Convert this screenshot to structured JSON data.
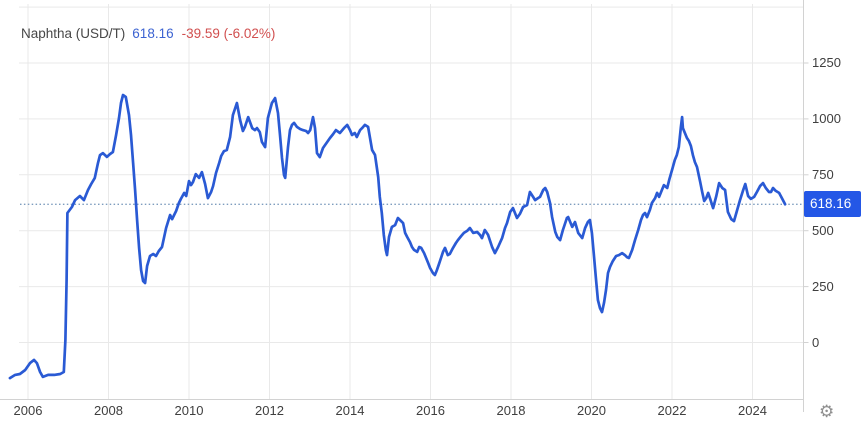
{
  "header": {
    "title": "Naphtha (USD/T)",
    "price": "618.16",
    "change": "-39.59 (-6.02%)"
  },
  "y_axis": {
    "ticks": [
      1250,
      1000,
      750,
      500,
      250,
      0
    ],
    "grid_levels": [
      1500,
      1250,
      1000,
      750,
      500,
      250,
      0
    ],
    "current_price_label": "618.16"
  },
  "x_axis": {
    "ticks": [
      "2006",
      "2008",
      "2010",
      "2012",
      "2014",
      "2016",
      "2018",
      "2020",
      "2022",
      "2024"
    ]
  },
  "icons": {
    "settings_glyph": "⚙"
  },
  "colors": {
    "line": "#2a5ad4",
    "badge": "#2457e6",
    "price_text": "#3c63d2",
    "change_text": "#d14f4f",
    "grid": "#e9e9e9",
    "axis": "#d2d2d2",
    "dotted": "#7d9cbe"
  },
  "chart_data": {
    "type": "line",
    "title": "Naphtha (USD/T)",
    "legend": "none",
    "grid": true,
    "current_value": 618.16,
    "change": -39.59,
    "change_pct": "-6.02%",
    "reference_line": 618.16,
    "xlabel": "",
    "ylabel": "USD/T",
    "x_range_years": [
      2005.55,
      2025.25
    ],
    "y_axis_labeled_range": [
      0,
      1250
    ],
    "series": [
      {
        "name": "Naphtha USD/T",
        "points": [
          [
            2005.55,
            -159
          ],
          [
            2005.68,
            -145
          ],
          [
            2005.8,
            -141
          ],
          [
            2005.93,
            -123
          ],
          [
            2006.05,
            -92
          ],
          [
            2006.15,
            -78
          ],
          [
            2006.22,
            -92
          ],
          [
            2006.3,
            -132
          ],
          [
            2006.37,
            -154
          ],
          [
            2006.5,
            -145
          ],
          [
            2006.65,
            -145
          ],
          [
            2006.8,
            -141
          ],
          [
            2006.89,
            -132
          ],
          [
            2006.93,
            11
          ],
          [
            2006.96,
            280
          ],
          [
            2006.98,
            579
          ],
          [
            2007.09,
            606
          ],
          [
            2007.17,
            637
          ],
          [
            2007.29,
            655
          ],
          [
            2007.39,
            637
          ],
          [
            2007.49,
            682
          ],
          [
            2007.57,
            709
          ],
          [
            2007.66,
            736
          ],
          [
            2007.74,
            803
          ],
          [
            2007.79,
            838
          ],
          [
            2007.86,
            847
          ],
          [
            2007.96,
            830
          ],
          [
            2008.04,
            843
          ],
          [
            2008.11,
            852
          ],
          [
            2008.19,
            928
          ],
          [
            2008.26,
            1004
          ],
          [
            2008.31,
            1071
          ],
          [
            2008.36,
            1107
          ],
          [
            2008.43,
            1098
          ],
          [
            2008.51,
            1017
          ],
          [
            2008.56,
            928
          ],
          [
            2008.61,
            803
          ],
          [
            2008.66,
            682
          ],
          [
            2008.71,
            548
          ],
          [
            2008.76,
            423
          ],
          [
            2008.81,
            324
          ],
          [
            2008.86,
            275
          ],
          [
            2008.91,
            266
          ],
          [
            2008.96,
            342
          ],
          [
            2009.03,
            387
          ],
          [
            2009.11,
            396
          ],
          [
            2009.18,
            387
          ],
          [
            2009.25,
            409
          ],
          [
            2009.33,
            427
          ],
          [
            2009.43,
            512
          ],
          [
            2009.53,
            570
          ],
          [
            2009.58,
            552
          ],
          [
            2009.68,
            588
          ],
          [
            2009.75,
            624
          ],
          [
            2009.8,
            642
          ],
          [
            2009.88,
            669
          ],
          [
            2009.93,
            655
          ],
          [
            2010.0,
            722
          ],
          [
            2010.05,
            704
          ],
          [
            2010.1,
            718
          ],
          [
            2010.17,
            753
          ],
          [
            2010.25,
            736
          ],
          [
            2010.32,
            762
          ],
          [
            2010.4,
            709
          ],
          [
            2010.47,
            646
          ],
          [
            2010.55,
            673
          ],
          [
            2010.6,
            700
          ],
          [
            2010.67,
            758
          ],
          [
            2010.75,
            803
          ],
          [
            2010.8,
            834
          ],
          [
            2010.87,
            856
          ],
          [
            2010.94,
            861
          ],
          [
            2011.02,
            919
          ],
          [
            2011.09,
            1017
          ],
          [
            2011.19,
            1071
          ],
          [
            2011.27,
            995
          ],
          [
            2011.34,
            946
          ],
          [
            2011.39,
            964
          ],
          [
            2011.47,
            1008
          ],
          [
            2011.57,
            959
          ],
          [
            2011.64,
            950
          ],
          [
            2011.69,
            959
          ],
          [
            2011.76,
            941
          ],
          [
            2011.81,
            897
          ],
          [
            2011.89,
            874
          ],
          [
            2011.96,
            1004
          ],
          [
            2012.06,
            1071
          ],
          [
            2012.14,
            1093
          ],
          [
            2012.21,
            1026
          ],
          [
            2012.26,
            928
          ],
          [
            2012.31,
            825
          ],
          [
            2012.36,
            749
          ],
          [
            2012.39,
            736
          ],
          [
            2012.46,
            874
          ],
          [
            2012.51,
            950
          ],
          [
            2012.56,
            973
          ],
          [
            2012.61,
            982
          ],
          [
            2012.68,
            964
          ],
          [
            2012.76,
            955
          ],
          [
            2012.83,
            950
          ],
          [
            2012.91,
            946
          ],
          [
            2012.96,
            937
          ],
          [
            2013.01,
            950
          ],
          [
            2013.08,
            1008
          ],
          [
            2013.13,
            959
          ],
          [
            2013.18,
            847
          ],
          [
            2013.25,
            829
          ],
          [
            2013.33,
            870
          ],
          [
            2013.38,
            883
          ],
          [
            2013.5,
            914
          ],
          [
            2013.58,
            932
          ],
          [
            2013.65,
            950
          ],
          [
            2013.75,
            937
          ],
          [
            2013.85,
            959
          ],
          [
            2013.93,
            973
          ],
          [
            2014.0,
            950
          ],
          [
            2014.05,
            928
          ],
          [
            2014.12,
            937
          ],
          [
            2014.17,
            919
          ],
          [
            2014.25,
            950
          ],
          [
            2014.3,
            959
          ],
          [
            2014.37,
            973
          ],
          [
            2014.45,
            964
          ],
          [
            2014.55,
            861
          ],
          [
            2014.62,
            839
          ],
          [
            2014.7,
            740
          ],
          [
            2014.74,
            651
          ],
          [
            2014.79,
            579
          ],
          [
            2014.84,
            481
          ],
          [
            2014.89,
            414
          ],
          [
            2014.92,
            391
          ],
          [
            2014.97,
            472
          ],
          [
            2015.04,
            517
          ],
          [
            2015.12,
            525
          ],
          [
            2015.19,
            557
          ],
          [
            2015.27,
            543
          ],
          [
            2015.32,
            534
          ],
          [
            2015.37,
            490
          ],
          [
            2015.42,
            472
          ],
          [
            2015.49,
            449
          ],
          [
            2015.54,
            427
          ],
          [
            2015.59,
            414
          ],
          [
            2015.67,
            405
          ],
          [
            2015.72,
            427
          ],
          [
            2015.77,
            423
          ],
          [
            2015.84,
            400
          ],
          [
            2015.89,
            378
          ],
          [
            2015.94,
            356
          ],
          [
            2015.99,
            333
          ],
          [
            2016.06,
            311
          ],
          [
            2016.11,
            302
          ],
          [
            2016.16,
            324
          ],
          [
            2016.21,
            351
          ],
          [
            2016.26,
            378
          ],
          [
            2016.31,
            405
          ],
          [
            2016.36,
            423
          ],
          [
            2016.43,
            391
          ],
          [
            2016.48,
            396
          ],
          [
            2016.56,
            423
          ],
          [
            2016.63,
            445
          ],
          [
            2016.68,
            458
          ],
          [
            2016.76,
            476
          ],
          [
            2016.83,
            490
          ],
          [
            2016.91,
            499
          ],
          [
            2016.98,
            512
          ],
          [
            2017.06,
            490
          ],
          [
            2017.16,
            494
          ],
          [
            2017.23,
            481
          ],
          [
            2017.28,
            467
          ],
          [
            2017.35,
            503
          ],
          [
            2017.43,
            481
          ],
          [
            2017.53,
            427
          ],
          [
            2017.6,
            400
          ],
          [
            2017.68,
            427
          ],
          [
            2017.78,
            467
          ],
          [
            2017.85,
            512
          ],
          [
            2017.9,
            534
          ],
          [
            2017.98,
            584
          ],
          [
            2018.05,
            601
          ],
          [
            2018.15,
            557
          ],
          [
            2018.22,
            575
          ],
          [
            2018.3,
            606
          ],
          [
            2018.4,
            615
          ],
          [
            2018.47,
            673
          ],
          [
            2018.55,
            651
          ],
          [
            2018.6,
            637
          ],
          [
            2018.67,
            646
          ],
          [
            2018.72,
            651
          ],
          [
            2018.8,
            682
          ],
          [
            2018.85,
            691
          ],
          [
            2018.9,
            673
          ],
          [
            2018.97,
            624
          ],
          [
            2019.02,
            561
          ],
          [
            2019.1,
            494
          ],
          [
            2019.15,
            472
          ],
          [
            2019.22,
            458
          ],
          [
            2019.29,
            503
          ],
          [
            2019.39,
            557
          ],
          [
            2019.42,
            561
          ],
          [
            2019.52,
            517
          ],
          [
            2019.59,
            539
          ],
          [
            2019.67,
            490
          ],
          [
            2019.77,
            467
          ],
          [
            2019.84,
            512
          ],
          [
            2019.91,
            539
          ],
          [
            2019.96,
            548
          ],
          [
            2020.01,
            490
          ],
          [
            2020.06,
            391
          ],
          [
            2020.11,
            288
          ],
          [
            2020.16,
            190
          ],
          [
            2020.21,
            154
          ],
          [
            2020.26,
            136
          ],
          [
            2020.31,
            177
          ],
          [
            2020.36,
            235
          ],
          [
            2020.41,
            311
          ],
          [
            2020.46,
            338
          ],
          [
            2020.53,
            364
          ],
          [
            2020.61,
            387
          ],
          [
            2020.68,
            391
          ],
          [
            2020.76,
            400
          ],
          [
            2020.83,
            391
          ],
          [
            2020.88,
            382
          ],
          [
            2020.93,
            378
          ],
          [
            2021.01,
            414
          ],
          [
            2021.08,
            458
          ],
          [
            2021.16,
            503
          ],
          [
            2021.23,
            548
          ],
          [
            2021.28,
            570
          ],
          [
            2021.33,
            579
          ],
          [
            2021.38,
            561
          ],
          [
            2021.45,
            593
          ],
          [
            2021.5,
            624
          ],
          [
            2021.58,
            646
          ],
          [
            2021.63,
            669
          ],
          [
            2021.68,
            651
          ],
          [
            2021.75,
            682
          ],
          [
            2021.8,
            704
          ],
          [
            2021.88,
            691
          ],
          [
            2021.93,
            727
          ],
          [
            2022.0,
            771
          ],
          [
            2022.07,
            816
          ],
          [
            2022.12,
            838
          ],
          [
            2022.17,
            874
          ],
          [
            2022.22,
            964
          ],
          [
            2022.25,
            1008
          ],
          [
            2022.27,
            959
          ],
          [
            2022.32,
            937
          ],
          [
            2022.37,
            915
          ],
          [
            2022.42,
            901
          ],
          [
            2022.47,
            879
          ],
          [
            2022.52,
            838
          ],
          [
            2022.57,
            807
          ],
          [
            2022.62,
            785
          ],
          [
            2022.7,
            718
          ],
          [
            2022.75,
            673
          ],
          [
            2022.8,
            633
          ],
          [
            2022.85,
            646
          ],
          [
            2022.9,
            669
          ],
          [
            2022.95,
            642
          ],
          [
            2023.02,
            601
          ],
          [
            2023.1,
            655
          ],
          [
            2023.17,
            713
          ],
          [
            2023.25,
            691
          ],
          [
            2023.32,
            682
          ],
          [
            2023.39,
            584
          ],
          [
            2023.47,
            552
          ],
          [
            2023.54,
            543
          ],
          [
            2023.62,
            593
          ],
          [
            2023.69,
            637
          ],
          [
            2023.77,
            682
          ],
          [
            2023.82,
            709
          ],
          [
            2023.89,
            655
          ],
          [
            2023.96,
            642
          ],
          [
            2024.04,
            651
          ],
          [
            2024.11,
            673
          ],
          [
            2024.19,
            700
          ],
          [
            2024.26,
            713
          ],
          [
            2024.33,
            691
          ],
          [
            2024.41,
            673
          ],
          [
            2024.46,
            673
          ],
          [
            2024.51,
            691
          ],
          [
            2024.58,
            678
          ],
          [
            2024.66,
            669
          ],
          [
            2024.73,
            646
          ],
          [
            2024.81,
            618.16
          ]
        ]
      }
    ]
  }
}
